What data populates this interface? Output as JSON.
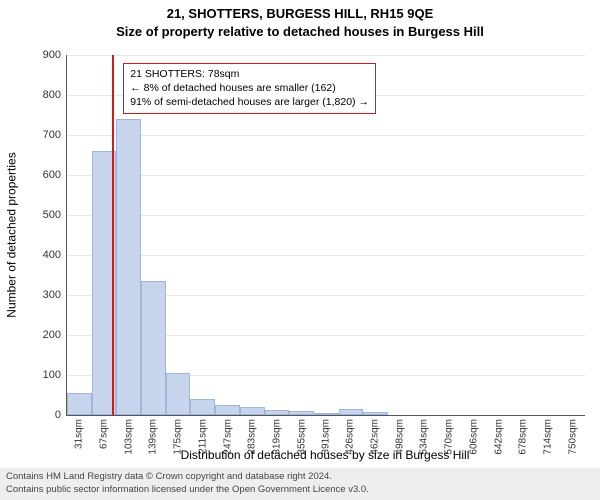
{
  "title_line1": "21, SHOTTERS, BURGESS HILL, RH15 9QE",
  "title_line2": "Size of property relative to detached houses in Burgess Hill",
  "ylabel": "Number of detached properties",
  "xlabel": "Distribution of detached houses by size in Burgess Hill",
  "chart": {
    "type": "histogram",
    "ylim": [
      0,
      900
    ],
    "ytick_step": 100,
    "bar_fill": "#c6d4ec",
    "bar_stroke": "#9fb6dc",
    "grid_color": "#e8e8e8",
    "marker_color": "#d11a1a",
    "xticks": [
      "31sqm",
      "67sqm",
      "103sqm",
      "139sqm",
      "175sqm",
      "211sqm",
      "247sqm",
      "283sqm",
      "319sqm",
      "355sqm",
      "391sqm",
      "426sqm",
      "462sqm",
      "498sqm",
      "534sqm",
      "570sqm",
      "606sqm",
      "642sqm",
      "678sqm",
      "714sqm",
      "750sqm"
    ],
    "x_min": 13,
    "x_max": 768,
    "bar_width_sqm": 36,
    "bars": [
      {
        "start": 13,
        "value": 55
      },
      {
        "start": 49,
        "value": 660
      },
      {
        "start": 85,
        "value": 740
      },
      {
        "start": 121,
        "value": 335
      },
      {
        "start": 157,
        "value": 105
      },
      {
        "start": 193,
        "value": 40
      },
      {
        "start": 229,
        "value": 25
      },
      {
        "start": 265,
        "value": 20
      },
      {
        "start": 301,
        "value": 12
      },
      {
        "start": 337,
        "value": 10
      },
      {
        "start": 373,
        "value": 5
      },
      {
        "start": 409,
        "value": 15
      },
      {
        "start": 445,
        "value": 8
      },
      {
        "start": 481,
        "value": 0
      },
      {
        "start": 517,
        "value": 0
      },
      {
        "start": 553,
        "value": 0
      },
      {
        "start": 589,
        "value": 0
      },
      {
        "start": 625,
        "value": 0
      },
      {
        "start": 661,
        "value": 0
      },
      {
        "start": 697,
        "value": 0
      },
      {
        "start": 733,
        "value": 0
      }
    ],
    "marker_x_sqm": 78,
    "annotation": {
      "line1": "21 SHOTTERS: 78sqm",
      "line2": "← 8% of detached houses are smaller (162)",
      "line3": "91% of semi-detached houses are larger (1,820) →",
      "x_sqm": 95,
      "y_value": 830
    }
  },
  "footer": {
    "line1": "Contains HM Land Registry data © Crown copyright and database right 2024.",
    "line2": "Contains public sector information licensed under the Open Government Licence v3.0."
  }
}
